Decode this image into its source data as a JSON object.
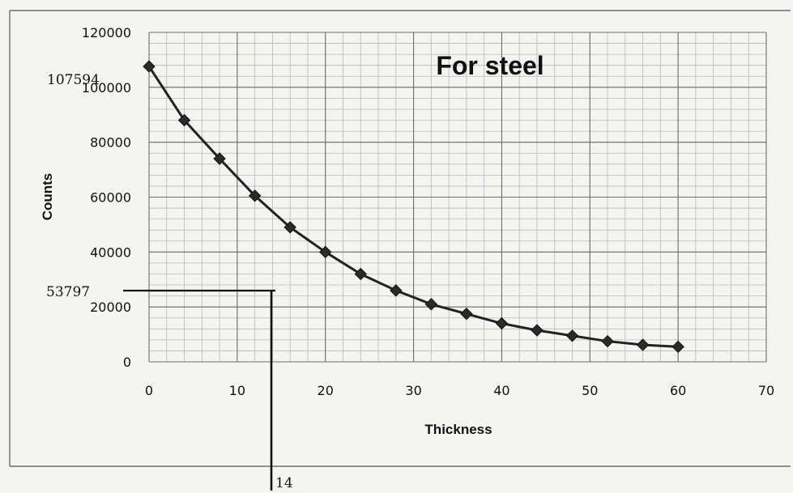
{
  "chart_data": {
    "type": "line",
    "title": "For steel",
    "xlabel": "Thickness",
    "ylabel": "Counts",
    "xlim": [
      0,
      70
    ],
    "ylim": [
      0,
      120000
    ],
    "x_ticks": [
      "0",
      "10",
      "20",
      "30",
      "40",
      "50",
      "60",
      "70"
    ],
    "y_ticks": [
      "0",
      "20000",
      "40000",
      "60000",
      "80000",
      "100000",
      "120000"
    ],
    "grid": true,
    "legend": "none",
    "series": [
      {
        "x": [
          0,
          4,
          8,
          12,
          16,
          20,
          24,
          28,
          32,
          36,
          40,
          44,
          48,
          52,
          56,
          60
        ],
        "y": [
          107594,
          88000,
          74000,
          60500,
          49000,
          40000,
          32000,
          26000,
          21000,
          17500,
          14000,
          11500,
          9500,
          7500,
          6200,
          5500
        ]
      }
    ],
    "annotations": {
      "start_value": "107594",
      "half_value": "53797",
      "half_thickness": "14"
    }
  }
}
